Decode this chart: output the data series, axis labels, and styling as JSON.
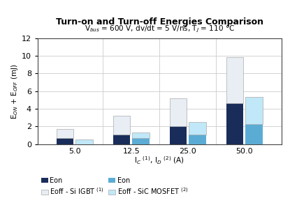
{
  "title": "Turn-on and Turn-off Energies Comparison",
  "subtitle": "V$_{bus}$ = 600 V, dv/dt = 5 V/ns, T$_J$ = 110 °C",
  "xlabel": "I$_C$ $^{(1)}$, I$_D$ $^{(2)}$ (A)",
  "ylabel": "E$_{ON}$ + E$_{OFF}$ (mJ)",
  "cat_labels": [
    "5.0",
    "12.5",
    "25.0",
    "50.0"
  ],
  "ylim": [
    0,
    12
  ],
  "yticks": [
    0,
    2,
    4,
    6,
    8,
    10,
    12
  ],
  "igbt_eon": [
    0.65,
    1.1,
    2.05,
    4.65
  ],
  "igbt_eoff": [
    1.05,
    2.15,
    3.15,
    5.2
  ],
  "sic_eon": [
    0.0,
    0.65,
    1.05,
    2.3
  ],
  "sic_eoff": [
    0.55,
    0.65,
    1.45,
    3.05
  ],
  "color_igbt_eon": "#1a2d5a",
  "color_igbt_eoff": "#e8eef4",
  "color_sic_eon": "#5bacd4",
  "color_sic_eoff": "#c0e8f8",
  "bar_width": 0.3,
  "background_color": "#ffffff",
  "grid_color": "#cccccc"
}
